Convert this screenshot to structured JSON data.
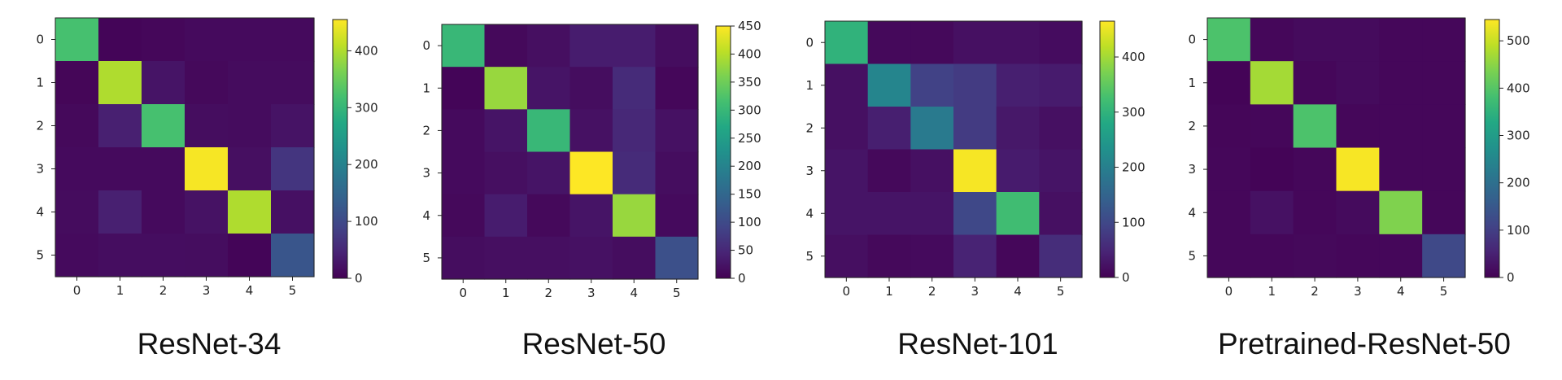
{
  "chart_data": [
    {
      "type": "heatmap",
      "title": "ResNet-34",
      "x_categories": [
        "0",
        "1",
        "2",
        "3",
        "4",
        "5"
      ],
      "y_categories": [
        "0",
        "1",
        "2",
        "3",
        "4",
        "5"
      ],
      "values": [
        [
          320,
          5,
          8,
          12,
          12,
          12
        ],
        [
          6,
          400,
          25,
          10,
          14,
          14
        ],
        [
          10,
          40,
          320,
          15,
          14,
          24
        ],
        [
          12,
          12,
          12,
          450,
          18,
          70
        ],
        [
          14,
          40,
          12,
          22,
          400,
          20
        ],
        [
          12,
          16,
          16,
          15,
          5,
          120
        ]
      ],
      "colorbar": {
        "min": 0,
        "max": 455,
        "ticks": [
          0,
          100,
          200,
          300,
          400
        ]
      }
    },
    {
      "type": "heatmap",
      "title": "ResNet-50",
      "x_categories": [
        "0",
        "1",
        "2",
        "3",
        "4",
        "5"
      ],
      "y_categories": [
        "0",
        "1",
        "2",
        "3",
        "4",
        "5"
      ],
      "values": [
        [
          300,
          10,
          18,
          35,
          35,
          15
        ],
        [
          5,
          380,
          25,
          15,
          55,
          8
        ],
        [
          12,
          25,
          300,
          20,
          50,
          20
        ],
        [
          12,
          18,
          25,
          450,
          55,
          15
        ],
        [
          10,
          35,
          10,
          25,
          380,
          12
        ],
        [
          15,
          18,
          18,
          20,
          15,
          110
        ]
      ],
      "colorbar": {
        "min": 0,
        "max": 450,
        "ticks": [
          0,
          50,
          100,
          150,
          200,
          250,
          300,
          350,
          400,
          450
        ]
      }
    },
    {
      "type": "heatmap",
      "title": "ResNet-101",
      "x_categories": [
        "0",
        "1",
        "2",
        "3",
        "4",
        "5"
      ],
      "y_categories": [
        "0",
        "1",
        "2",
        "3",
        "4",
        "5"
      ],
      "values": [
        [
          300,
          10,
          10,
          20,
          20,
          15
        ],
        [
          20,
          210,
          90,
          80,
          40,
          35
        ],
        [
          20,
          40,
          190,
          80,
          30,
          20
        ],
        [
          25,
          10,
          20,
          460,
          35,
          25
        ],
        [
          25,
          25,
          25,
          100,
          320,
          20
        ],
        [
          18,
          10,
          12,
          45,
          8,
          60
        ]
      ],
      "colorbar": {
        "min": 0,
        "max": 465,
        "ticks": [
          0,
          100,
          200,
          300,
          400
        ]
      }
    },
    {
      "type": "heatmap",
      "title": "Pretrained-ResNet-50",
      "x_categories": [
        "0",
        "1",
        "2",
        "3",
        "4",
        "5"
      ],
      "y_categories": [
        "0",
        "1",
        "2",
        "3",
        "4",
        "5"
      ],
      "values": [
        [
          390,
          10,
          15,
          15,
          10,
          10
        ],
        [
          5,
          470,
          10,
          15,
          10,
          10
        ],
        [
          8,
          10,
          390,
          10,
          10,
          10
        ],
        [
          10,
          5,
          10,
          540,
          10,
          10
        ],
        [
          10,
          25,
          10,
          15,
          440,
          10
        ],
        [
          10,
          10,
          12,
          10,
          10,
          120
        ]
      ],
      "colorbar": {
        "min": 0,
        "max": 545,
        "ticks": [
          0,
          100,
          200,
          300,
          400,
          500
        ]
      }
    }
  ]
}
